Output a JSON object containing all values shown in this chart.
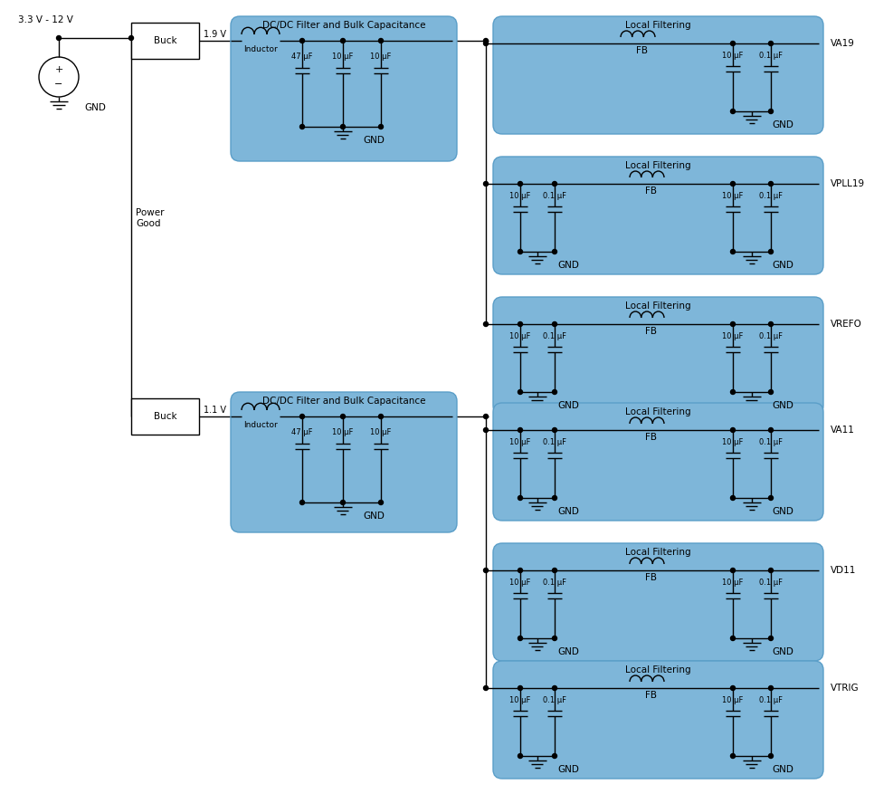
{
  "bg_color": "#ffffff",
  "box_fill": "#7EB6D9",
  "box_edge": "#5A9EC8",
  "buck_fill": "#ffffff",
  "buck_edge": "#000000",
  "line_color": "#000000",
  "font_size": 7.5,
  "supply_label": "3.3 V - 12 V",
  "gnd_label": "GND",
  "power_good_label": "Power\nGood",
  "v19_label": "1.9 V",
  "v11_label": "1.1 V",
  "buck_label": "Buck",
  "dcdc_label": "DC/DC Filter and Bulk Capacitance",
  "local_label": "Local Filtering",
  "inductor_label": "Inductor",
  "fb_label": "FB",
  "caps_47": "47 μF",
  "caps_10": "10 μF",
  "caps_01": "0.1 μF",
  "outputs_19": [
    "VA19",
    "VPLL19",
    "VREFO"
  ],
  "outputs_11": [
    "VA11",
    "VD11",
    "VTRIG"
  ]
}
